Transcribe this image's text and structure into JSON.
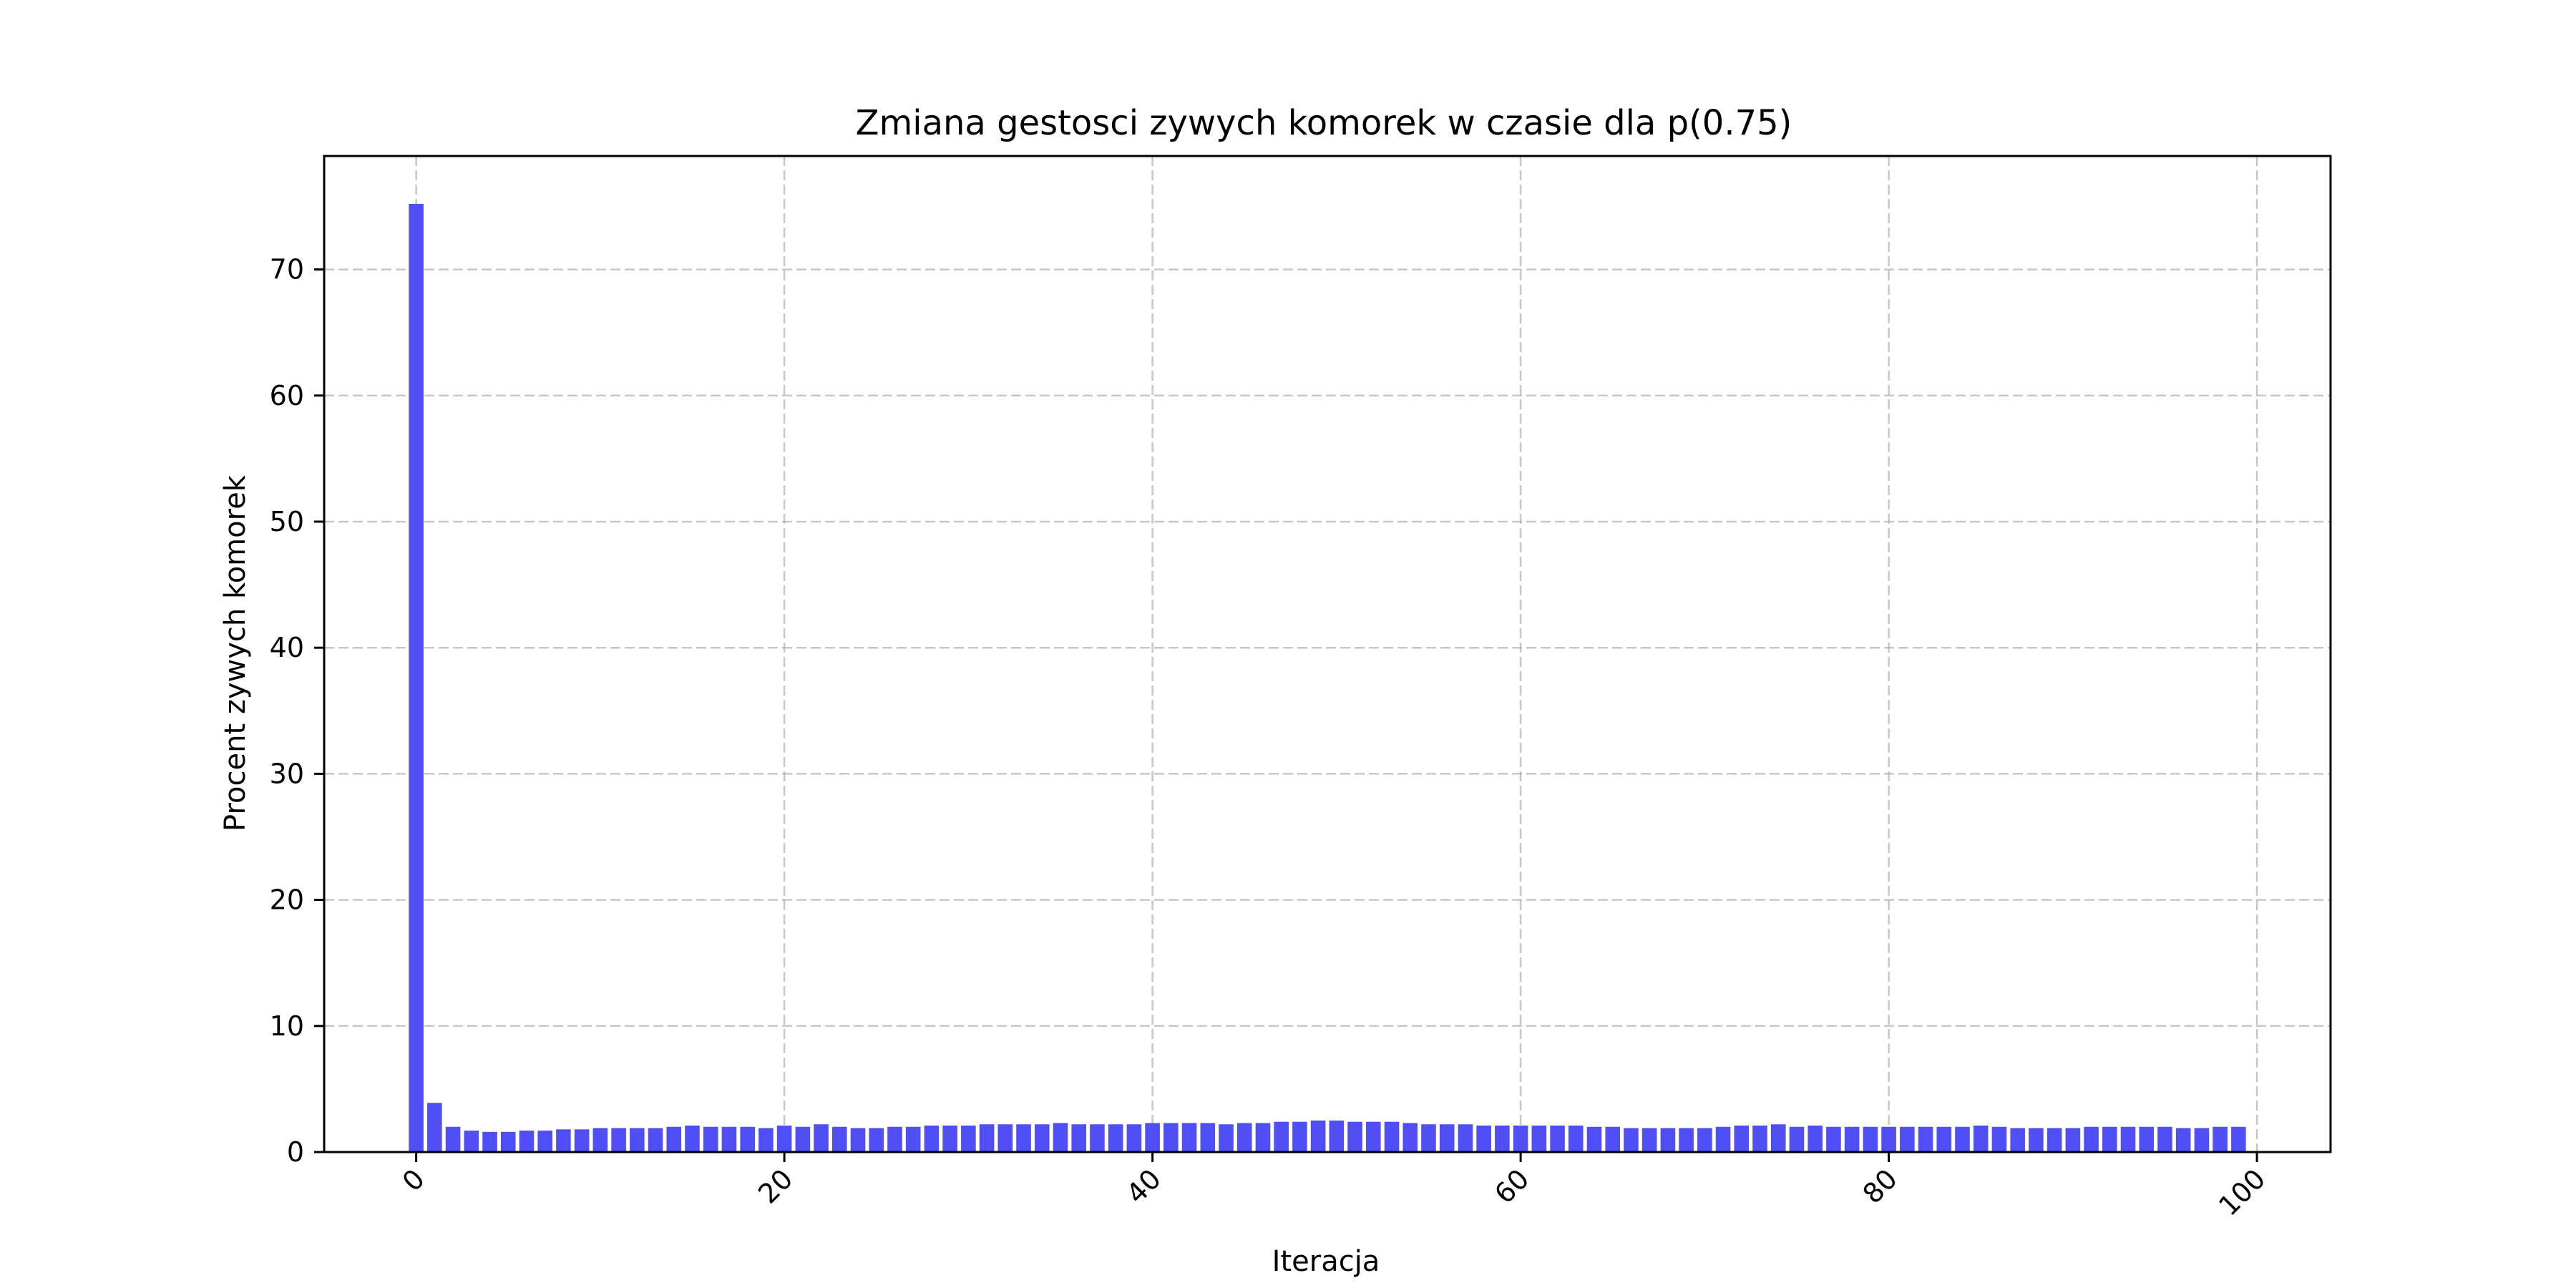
{
  "chart_data": {
    "type": "bar",
    "title": "Zmiana gestosci zywych komorek w czasie dla p(0.75)",
    "xlabel": "Iteracja",
    "ylabel": "Procent zywych komorek",
    "bar_color": "#4b4bf5",
    "grid": true,
    "xlim": [
      -5,
      104
    ],
    "ylim": [
      0,
      79
    ],
    "xticks": [
      0,
      20,
      40,
      60,
      80,
      100
    ],
    "yticks": [
      0,
      10,
      20,
      30,
      40,
      50,
      60,
      70
    ],
    "x": [
      0,
      1,
      2,
      3,
      4,
      5,
      6,
      7,
      8,
      9,
      10,
      11,
      12,
      13,
      14,
      15,
      16,
      17,
      18,
      19,
      20,
      21,
      22,
      23,
      24,
      25,
      26,
      27,
      28,
      29,
      30,
      31,
      32,
      33,
      34,
      35,
      36,
      37,
      38,
      39,
      40,
      41,
      42,
      43,
      44,
      45,
      46,
      47,
      48,
      49,
      50,
      51,
      52,
      53,
      54,
      55,
      56,
      57,
      58,
      59,
      60,
      61,
      62,
      63,
      64,
      65,
      66,
      67,
      68,
      69,
      70,
      71,
      72,
      73,
      74,
      75,
      76,
      77,
      78,
      79,
      80,
      81,
      82,
      83,
      84,
      85,
      86,
      87,
      88,
      89,
      90,
      91,
      92,
      93,
      94,
      95,
      96,
      97,
      98,
      99
    ],
    "values": [
      75.2,
      3.9,
      2.0,
      1.7,
      1.6,
      1.6,
      1.7,
      1.7,
      1.8,
      1.8,
      1.9,
      1.9,
      1.9,
      1.9,
      2.0,
      2.1,
      2.0,
      2.0,
      2.0,
      1.9,
      2.1,
      2.0,
      2.2,
      2.0,
      1.9,
      1.9,
      2.0,
      2.0,
      2.1,
      2.1,
      2.1,
      2.2,
      2.2,
      2.2,
      2.2,
      2.3,
      2.2,
      2.2,
      2.2,
      2.2,
      2.3,
      2.3,
      2.3,
      2.3,
      2.2,
      2.3,
      2.3,
      2.4,
      2.4,
      2.5,
      2.5,
      2.4,
      2.4,
      2.4,
      2.3,
      2.2,
      2.2,
      2.2,
      2.1,
      2.1,
      2.1,
      2.1,
      2.1,
      2.1,
      2.0,
      2.0,
      1.9,
      1.9,
      1.9,
      1.9,
      1.9,
      2.0,
      2.1,
      2.1,
      2.2,
      2.0,
      2.1,
      2.0,
      2.0,
      2.0,
      2.0,
      2.0,
      2.0,
      2.0,
      2.0,
      2.1,
      2.0,
      1.9,
      1.9,
      1.9,
      1.9,
      2.0,
      2.0,
      2.0,
      2.0,
      2.0,
      1.9,
      1.9,
      2.0,
      2.0
    ]
  }
}
